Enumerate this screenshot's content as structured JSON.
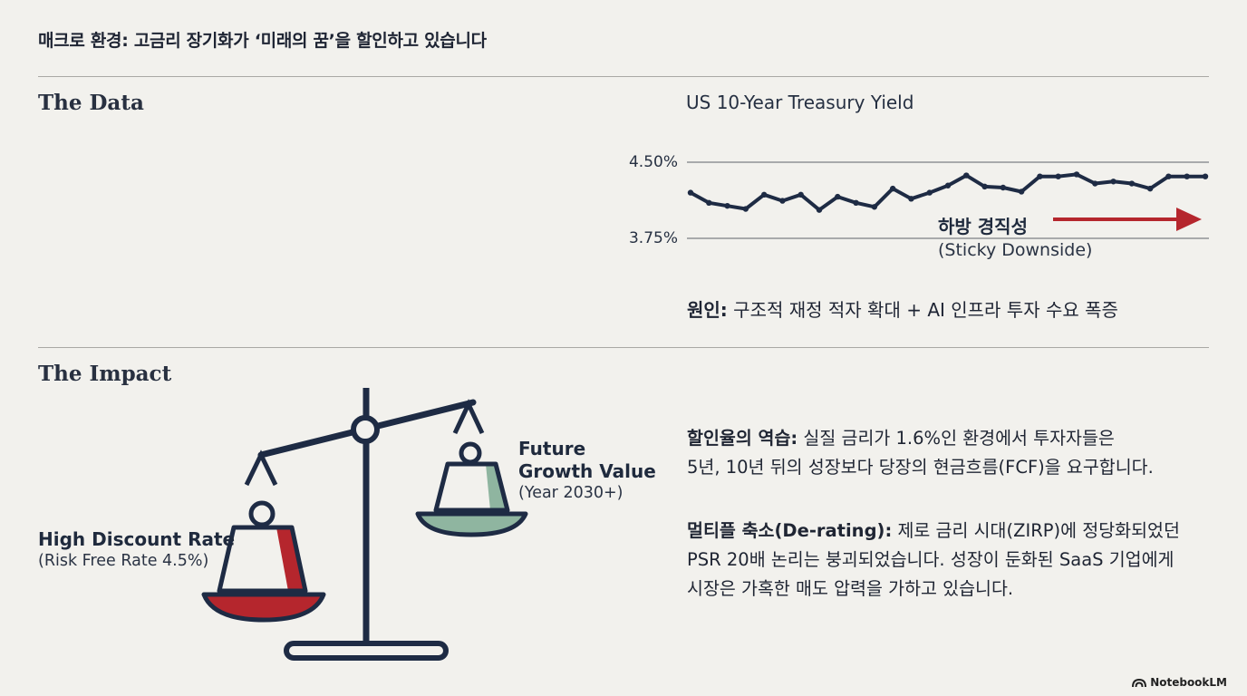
{
  "header": {
    "title": "매크로 환경: 고금리 장기화가 ‘미래의 꿈’을 할인하고 있습니다"
  },
  "sections": {
    "data_title": "The Data",
    "impact_title": "The Impact"
  },
  "chart_data": {
    "type": "line",
    "title": "US 10-Year Treasury Yield",
    "y_tick_labels": [
      "4.50%",
      "3.75%"
    ],
    "y_ticks": [
      4.5,
      3.75
    ],
    "ylim": [
      3.75,
      4.5
    ],
    "grid": true,
    "series": [
      {
        "values": [
          4.2,
          4.1,
          4.07,
          4.04,
          4.18,
          4.12,
          4.18,
          4.03,
          4.16,
          4.1,
          4.06,
          4.24,
          4.14,
          4.2,
          4.27,
          4.37,
          4.26,
          4.25,
          4.21,
          4.36,
          4.36,
          4.38,
          4.29,
          4.31,
          4.29,
          4.24,
          4.36,
          4.36,
          4.36
        ]
      }
    ],
    "annotation": {
      "title": "하방 경직성",
      "subtitle": "(Sticky Downside)"
    }
  },
  "cause": {
    "label": "원인:",
    "text": " 구조적 재정 적자 확대 + AI 인프라 투자 수요 폭증"
  },
  "impact": {
    "p1": {
      "bold": "할인율의 역습:",
      "line1": " 실질 금리가 1.6%인 환경에서 투자자들은",
      "line2": "5년, 10년 뒤의 성장보다 당장의 현금흐름(FCF)을 요구합니다."
    },
    "p2": {
      "bold": "멀티플 축소(De-rating):",
      "line1": " 제로 금리 시대(ZIRP)에 정당화되었던",
      "line2": "PSR 20배 논리는 붕괴되었습니다. 성장이 둔화된 SaaS 기업에게",
      "line3": "시장은 가혹한 매도 압력을 가하고 있습니다."
    }
  },
  "scale": {
    "left_title": "High Discount Rate",
    "left_sub": "(Risk Free Rate 4.5%)",
    "right_title_1": "Future",
    "right_title_2": "Growth Value",
    "right_sub": "(Year 2030+)",
    "colors": {
      "navy": "#1e2b44",
      "red": "#b5262d",
      "green": "#8fb5a0"
    }
  },
  "branding": {
    "name": "NotebookLM"
  }
}
